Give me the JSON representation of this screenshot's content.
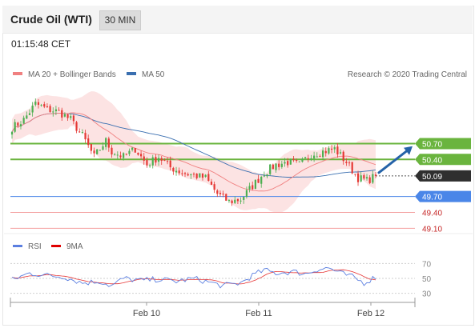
{
  "header": {
    "title": "Crude Oil (WTI)",
    "timeframe": "30 MIN"
  },
  "timestamp": "01:15:48 CET",
  "credit": "Research © 2020 Trading Central",
  "colors": {
    "up": "#4caf50",
    "down": "#e53935",
    "ma20": "#f08080",
    "ma50": "#3a6fb0",
    "band": "#fbd9d9",
    "support": "#4a86e8",
    "resistance": "#6ab43e",
    "projection": "#2563a8",
    "rsi": "#5b7fe0",
    "rsi_ma": "#e00000"
  },
  "chart_data": [
    {
      "type": "candlestick",
      "ylim": [
        49.0,
        51.9
      ],
      "x_ticks": [
        "Feb 10",
        "Feb 11",
        "Feb 12"
      ],
      "legend": [
        {
          "name": "MA 20 + Bollinger Bands",
          "color": "#f08080"
        },
        {
          "name": "MA 50",
          "color": "#3a6fb0"
        }
      ],
      "close_anchors": [
        [
          0,
          51.0
        ],
        [
          4,
          51.15
        ],
        [
          8,
          51.45
        ],
        [
          12,
          51.35
        ],
        [
          16,
          51.3
        ],
        [
          20,
          51.15
        ],
        [
          24,
          50.85
        ],
        [
          28,
          50.45
        ],
        [
          32,
          50.75
        ],
        [
          34,
          50.55
        ],
        [
          38,
          50.45
        ],
        [
          42,
          50.6
        ],
        [
          46,
          50.3
        ],
        [
          50,
          50.45
        ],
        [
          54,
          50.25
        ],
        [
          58,
          50.15
        ],
        [
          62,
          50.1
        ],
        [
          66,
          50.05
        ],
        [
          70,
          49.75
        ],
        [
          74,
          49.6
        ],
        [
          78,
          49.65
        ],
        [
          82,
          49.9
        ],
        [
          86,
          50.15
        ],
        [
          90,
          50.3
        ],
        [
          94,
          50.35
        ],
        [
          98,
          50.3
        ],
        [
          102,
          50.5
        ],
        [
          106,
          50.55
        ],
        [
          110,
          50.6
        ],
        [
          114,
          50.35
        ],
        [
          118,
          50.05
        ],
        [
          121,
          50.0
        ],
        [
          124,
          50.09
        ]
      ],
      "levels": [
        {
          "label": "50.70",
          "value": 50.7,
          "role": "resistance"
        },
        {
          "label": "50.40",
          "value": 50.4,
          "role": "resistance"
        },
        {
          "label": "50.09",
          "value": 50.09,
          "role": "last"
        },
        {
          "label": "49.70",
          "value": 49.7,
          "role": "pivot"
        },
        {
          "label": "49.40",
          "value": 49.4,
          "role": "support"
        },
        {
          "label": "49.10",
          "value": 49.1,
          "role": "support"
        }
      ],
      "projection": {
        "direction": "up",
        "from": 50.15,
        "to": 50.65
      }
    },
    {
      "type": "line",
      "series": [
        {
          "name": "RSI"
        },
        {
          "name": "9MA"
        }
      ],
      "ylim": [
        20,
        80
      ],
      "y_ticks": [
        "70",
        "50",
        "30"
      ],
      "rsi_anchors": [
        [
          0,
          48
        ],
        [
          6,
          57
        ],
        [
          12,
          54
        ],
        [
          18,
          52
        ],
        [
          24,
          44
        ],
        [
          30,
          46
        ],
        [
          34,
          40
        ],
        [
          38,
          50
        ],
        [
          44,
          47
        ],
        [
          50,
          49
        ],
        [
          56,
          46
        ],
        [
          62,
          50
        ],
        [
          68,
          44
        ],
        [
          72,
          40
        ],
        [
          78,
          44
        ],
        [
          82,
          54
        ],
        [
          86,
          61
        ],
        [
          90,
          57
        ],
        [
          96,
          59
        ],
        [
          100,
          56
        ],
        [
          104,
          62
        ],
        [
          108,
          64
        ],
        [
          112,
          57
        ],
        [
          116,
          52
        ],
        [
          120,
          44
        ],
        [
          124,
          52
        ]
      ]
    }
  ]
}
